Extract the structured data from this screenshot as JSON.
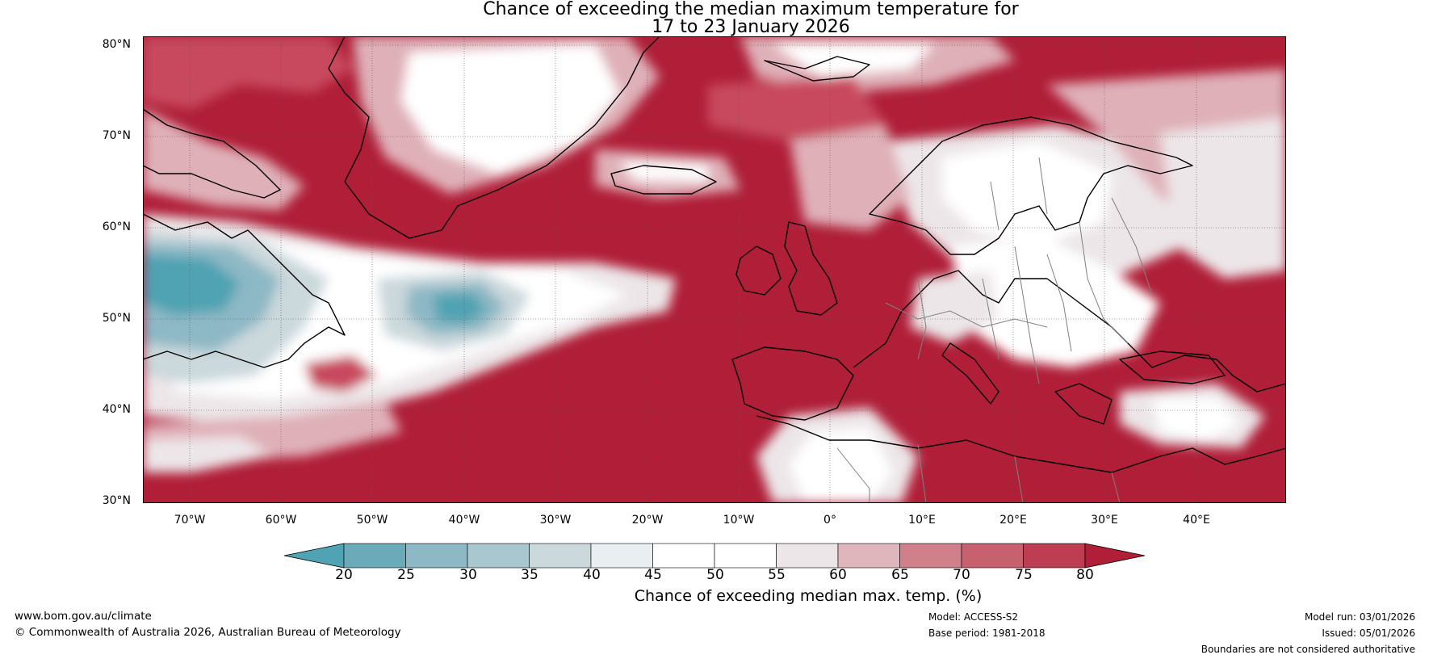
{
  "title": {
    "line1": "Chance of exceeding the median maximum temperature for",
    "line2": "17 to 23 January 2026"
  },
  "axes": {
    "lat_labels": [
      "80°N",
      "70°N",
      "60°N",
      "50°N",
      "40°N",
      "30°N"
    ],
    "lon_labels": [
      "70°W",
      "60°W",
      "50°W",
      "40°W",
      "30°W",
      "20°W",
      "10°W",
      "0°",
      "10°E",
      "20°E",
      "30°E",
      "40°E"
    ]
  },
  "colorbar": {
    "tick_labels": [
      "20",
      "25",
      "30",
      "35",
      "40",
      "45",
      "50",
      "55",
      "60",
      "65",
      "70",
      "75",
      "80"
    ],
    "label": "Chance of exceeding median max. temp. (%)",
    "colors": [
      "#4fa3b2",
      "#6aaab9",
      "#8db8c5",
      "#a9c7cf",
      "#cbd8dc",
      "#e9eff1",
      "#ffffff",
      "#ffffff",
      "#ece6e8",
      "#e0b6bd",
      "#d17f8b",
      "#c7606f",
      "#bd3e52",
      "#b01e38"
    ]
  },
  "map": {
    "colors": {
      "deep_red": "#b01e38",
      "red": "#c84a5d",
      "pink": "#dfb0b8",
      "light": "#ece6e8",
      "white": "#ffffff",
      "pale_blue": "#cbd8dc",
      "blue": "#8db8c5",
      "teal": "#4fa3b2"
    }
  },
  "footer": {
    "url": "www.bom.gov.au/climate",
    "copyright": "© Commonwealth of Australia 2026, Australian Bureau of Meteorology",
    "model": "Model: ACCESS-S2",
    "base_period": "Base period: 1981-2018",
    "model_run": "Model run: 03/01/2026",
    "issued": "Issued: 05/01/2026",
    "disclaimer": "Boundaries are not considered authoritative"
  }
}
